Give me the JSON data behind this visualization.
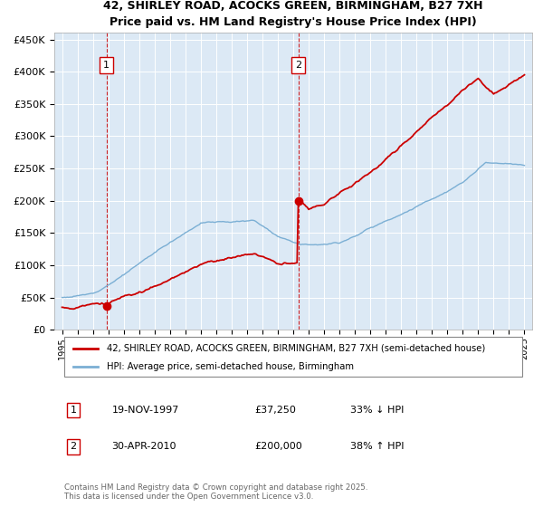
{
  "title1": "42, SHIRLEY ROAD, ACOCKS GREEN, BIRMINGHAM, B27 7XH",
  "title2": "Price paid vs. HM Land Registry's House Price Index (HPI)",
  "plot_bg_color": "#dce9f5",
  "red_line_color": "#cc0000",
  "blue_line_color": "#7bafd4",
  "sale1_date_year": 1997.89,
  "sale1_price": 37250,
  "sale2_date_year": 2010.33,
  "sale2_price": 200000,
  "ylim": [
    0,
    460000
  ],
  "xlim": [
    1994.5,
    2025.5
  ],
  "yticks": [
    0,
    50000,
    100000,
    150000,
    200000,
    250000,
    300000,
    350000,
    400000,
    450000
  ],
  "ytick_labels": [
    "£0",
    "£50K",
    "£100K",
    "£150K",
    "£200K",
    "£250K",
    "£300K",
    "£350K",
    "£400K",
    "£450K"
  ],
  "xticks": [
    1995,
    1996,
    1997,
    1998,
    1999,
    2000,
    2001,
    2002,
    2003,
    2004,
    2005,
    2006,
    2007,
    2008,
    2009,
    2010,
    2011,
    2012,
    2013,
    2014,
    2015,
    2016,
    2017,
    2018,
    2019,
    2020,
    2021,
    2022,
    2023,
    2024,
    2025
  ],
  "legend_red_label": "42, SHIRLEY ROAD, ACOCKS GREEN, BIRMINGHAM, B27 7XH (semi-detached house)",
  "legend_blue_label": "HPI: Average price, semi-detached house, Birmingham",
  "annotation1_date": "19-NOV-1997",
  "annotation1_price": "£37,250",
  "annotation1_hpi": "33% ↓ HPI",
  "annotation2_date": "30-APR-2010",
  "annotation2_price": "£200,000",
  "annotation2_hpi": "38% ↑ HPI",
  "footer": "Contains HM Land Registry data © Crown copyright and database right 2025.\nThis data is licensed under the Open Government Licence v3.0."
}
